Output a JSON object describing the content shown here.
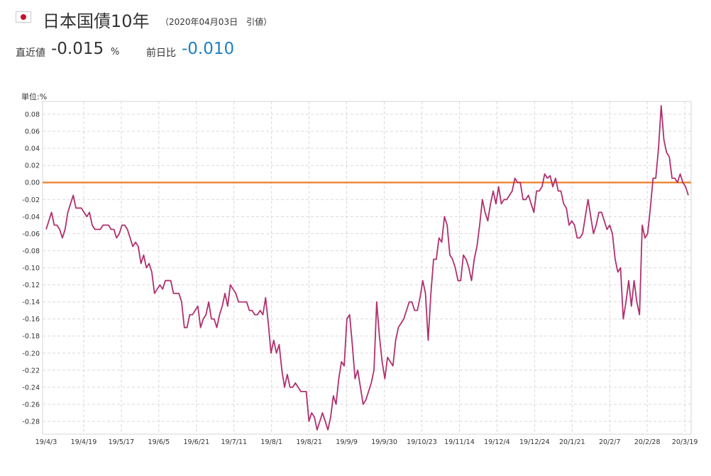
{
  "header": {
    "flag_icon": "japan-flag-icon",
    "title": "日本国債10年",
    "subtitle": "（2020年04月03日　引値）"
  },
  "stats": {
    "latest_label": "直近値",
    "latest_value": "-0.015",
    "latest_unit": "%",
    "change_label": "前日比",
    "change_value": "-0.010",
    "change_color": "#1f7fbf"
  },
  "chart_data": {
    "type": "line",
    "unit_label": "単位:%",
    "ylim": [
      -0.295,
      0.095
    ],
    "y_ticks": [
      "0.08",
      "0.06",
      "0.04",
      "0.02",
      "0.00",
      "-0.02",
      "-0.04",
      "-0.06",
      "-0.08",
      "-0.10",
      "-0.12",
      "-0.14",
      "-0.16",
      "-0.18",
      "-0.20",
      "-0.22",
      "-0.24",
      "-0.26",
      "-0.28"
    ],
    "x_ticks": [
      "19/4/3",
      "19/4/19",
      "19/5/17",
      "19/6/5",
      "19/6/21",
      "19/7/11",
      "19/8/1",
      "19/8/21",
      "19/9/9",
      "19/9/30",
      "19/10/23",
      "19/11/14",
      "19/12/4",
      "19/12/24",
      "20/1/21",
      "20/2/7",
      "20/2/28",
      "20/3/19"
    ],
    "grid": true,
    "reference_line": {
      "value": 0.0,
      "color": "#ee8a3c"
    },
    "series": [
      {
        "color": "#b0306e",
        "values": [
          -0.055,
          -0.045,
          -0.035,
          -0.05,
          -0.05,
          -0.055,
          -0.065,
          -0.055,
          -0.035,
          -0.025,
          -0.015,
          -0.03,
          -0.03,
          -0.03,
          -0.035,
          -0.04,
          -0.035,
          -0.05,
          -0.055,
          -0.055,
          -0.055,
          -0.05,
          -0.05,
          -0.05,
          -0.055,
          -0.055,
          -0.065,
          -0.06,
          -0.05,
          -0.05,
          -0.055,
          -0.065,
          -0.075,
          -0.07,
          -0.075,
          -0.095,
          -0.085,
          -0.1,
          -0.095,
          -0.105,
          -0.13,
          -0.125,
          -0.12,
          -0.125,
          -0.115,
          -0.115,
          -0.115,
          -0.13,
          -0.13,
          -0.13,
          -0.14,
          -0.17,
          -0.17,
          -0.155,
          -0.155,
          -0.15,
          -0.145,
          -0.17,
          -0.16,
          -0.155,
          -0.14,
          -0.16,
          -0.16,
          -0.17,
          -0.155,
          -0.145,
          -0.13,
          -0.145,
          -0.12,
          -0.125,
          -0.13,
          -0.14,
          -0.14,
          -0.14,
          -0.14,
          -0.15,
          -0.15,
          -0.155,
          -0.155,
          -0.15,
          -0.155,
          -0.135,
          -0.165,
          -0.2,
          -0.185,
          -0.2,
          -0.19,
          -0.22,
          -0.24,
          -0.225,
          -0.24,
          -0.24,
          -0.235,
          -0.24,
          -0.245,
          -0.245,
          -0.245,
          -0.28,
          -0.27,
          -0.275,
          -0.29,
          -0.28,
          -0.27,
          -0.28,
          -0.29,
          -0.275,
          -0.25,
          -0.26,
          -0.23,
          -0.21,
          -0.215,
          -0.16,
          -0.155,
          -0.19,
          -0.23,
          -0.22,
          -0.24,
          -0.26,
          -0.255,
          -0.245,
          -0.235,
          -0.22,
          -0.14,
          -0.18,
          -0.21,
          -0.23,
          -0.205,
          -0.21,
          -0.215,
          -0.185,
          -0.17,
          -0.165,
          -0.16,
          -0.15,
          -0.14,
          -0.14,
          -0.15,
          -0.15,
          -0.135,
          -0.115,
          -0.13,
          -0.185,
          -0.13,
          -0.09,
          -0.09,
          -0.065,
          -0.07,
          -0.04,
          -0.05,
          -0.085,
          -0.09,
          -0.1,
          -0.115,
          -0.115,
          -0.085,
          -0.09,
          -0.1,
          -0.115,
          -0.09,
          -0.075,
          -0.05,
          -0.02,
          -0.035,
          -0.045,
          -0.025,
          -0.01,
          -0.025,
          -0.005,
          -0.025,
          -0.02,
          -0.02,
          -0.015,
          -0.01,
          0.005,
          0.0,
          0.0,
          -0.02,
          -0.02,
          -0.015,
          -0.025,
          -0.035,
          -0.01,
          -0.01,
          -0.005,
          0.01,
          0.005,
          0.008,
          -0.005,
          0.005,
          -0.01,
          -0.01,
          -0.025,
          -0.03,
          -0.05,
          -0.045,
          -0.05,
          -0.065,
          -0.065,
          -0.06,
          -0.04,
          -0.02,
          -0.04,
          -0.06,
          -0.05,
          -0.035,
          -0.035,
          -0.045,
          -0.055,
          -0.05,
          -0.06,
          -0.09,
          -0.105,
          -0.1,
          -0.16,
          -0.14,
          -0.115,
          -0.145,
          -0.115,
          -0.14,
          -0.155,
          -0.05,
          -0.065,
          -0.06,
          -0.03,
          0.005,
          0.005,
          0.04,
          0.09,
          0.05,
          0.035,
          0.03,
          0.005,
          0.005,
          0.0,
          0.01,
          0.0,
          -0.005,
          -0.015
        ]
      }
    ]
  }
}
